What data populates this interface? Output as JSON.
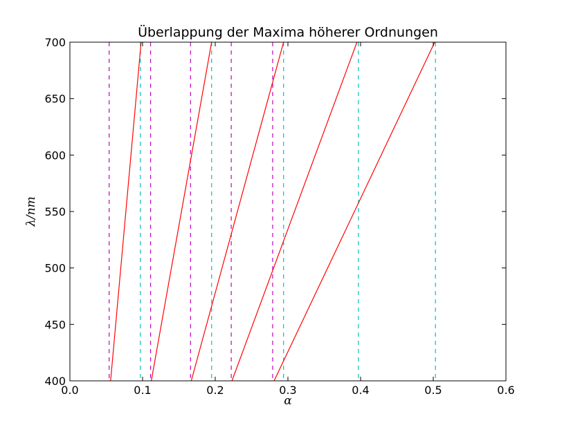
{
  "chart_data": {
    "type": "line",
    "title": "Überlappung der Maxima höherer Ordnungen",
    "xlabel": "α",
    "ylabel": "λ/nm",
    "xlim": [
      0.0,
      0.6
    ],
    "ylim": [
      400,
      700
    ],
    "xticks": [
      0.0,
      0.1,
      0.2,
      0.3,
      0.4,
      0.5,
      0.6
    ],
    "xtick_labels": [
      "0.0",
      "0.1",
      "0.2",
      "0.3",
      "0.4",
      "0.5",
      "0.6"
    ],
    "yticks": [
      400,
      450,
      500,
      550,
      600,
      650,
      700
    ],
    "ytick_labels": [
      "400",
      "450",
      "500",
      "550",
      "600",
      "650",
      "700"
    ],
    "grid": false,
    "series": [
      {
        "color": "#ff0000",
        "style": "solid",
        "x": [
          0.056,
          0.098
        ],
        "y": [
          400,
          700
        ]
      },
      {
        "color": "#ff0000",
        "style": "solid",
        "x": [
          0.112,
          0.195
        ],
        "y": [
          400,
          700
        ]
      },
      {
        "color": "#ff0000",
        "style": "solid",
        "x": [
          0.167,
          0.294
        ],
        "y": [
          400,
          700
        ]
      },
      {
        "color": "#ff0000",
        "style": "solid",
        "x": [
          0.223,
          0.395
        ],
        "y": [
          400,
          700
        ]
      },
      {
        "color": "#ff0000",
        "style": "solid",
        "x": [
          0.281,
          0.502
        ],
        "y": [
          400,
          700
        ]
      }
    ],
    "vlines": [
      {
        "x": 0.054,
        "color": "#bf00bf",
        "style": "dashed"
      },
      {
        "x": 0.111,
        "color": "#bf00bf",
        "style": "dashed"
      },
      {
        "x": 0.166,
        "color": "#bf00bf",
        "style": "dashed"
      },
      {
        "x": 0.222,
        "color": "#bf00bf",
        "style": "dashed"
      },
      {
        "x": 0.279,
        "color": "#bf00bf",
        "style": "dashed"
      },
      {
        "x": 0.097,
        "color": "#00bfbf",
        "style": "dashed"
      },
      {
        "x": 0.195,
        "color": "#00bfbf",
        "style": "dashed"
      },
      {
        "x": 0.294,
        "color": "#00bfbf",
        "style": "dashed"
      },
      {
        "x": 0.397,
        "color": "#00bfbf",
        "style": "dashed"
      },
      {
        "x": 0.503,
        "color": "#00bfbf",
        "style": "dashed"
      }
    ]
  }
}
